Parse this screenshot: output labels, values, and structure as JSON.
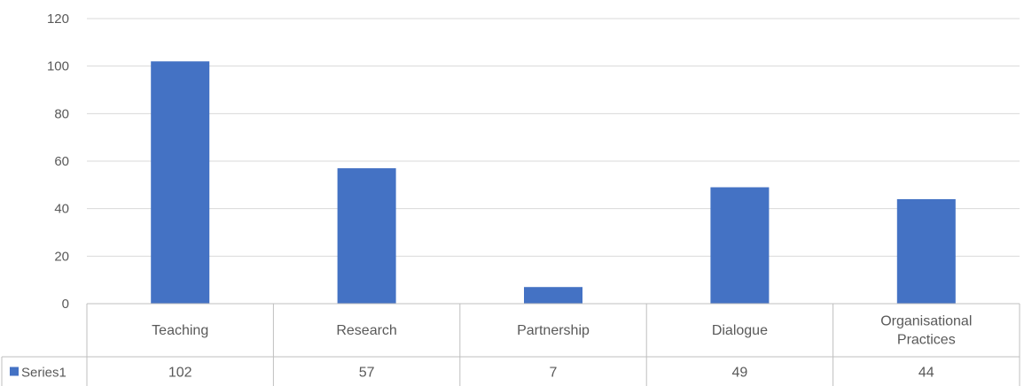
{
  "chart_data": {
    "type": "bar",
    "title": "",
    "xlabel": "",
    "ylabel": "",
    "categories": [
      "Teaching",
      "Research",
      "Partnership",
      "Dialogue",
      "Organisational Practices"
    ],
    "category_lines": [
      [
        "Teaching"
      ],
      [
        "Research"
      ],
      [
        "Partnership"
      ],
      [
        "Dialogue"
      ],
      [
        "Organisational",
        "Practices"
      ]
    ],
    "series": [
      {
        "name": "Series1",
        "values": [
          102,
          57,
          7,
          49,
          44
        ],
        "color": "#4472C4"
      }
    ],
    "ylim": [
      0,
      120
    ],
    "yticks": [
      "0",
      "20",
      "40",
      "60",
      "80",
      "100",
      "120"
    ],
    "grid": true,
    "legend": "data-table",
    "data_table": true
  }
}
